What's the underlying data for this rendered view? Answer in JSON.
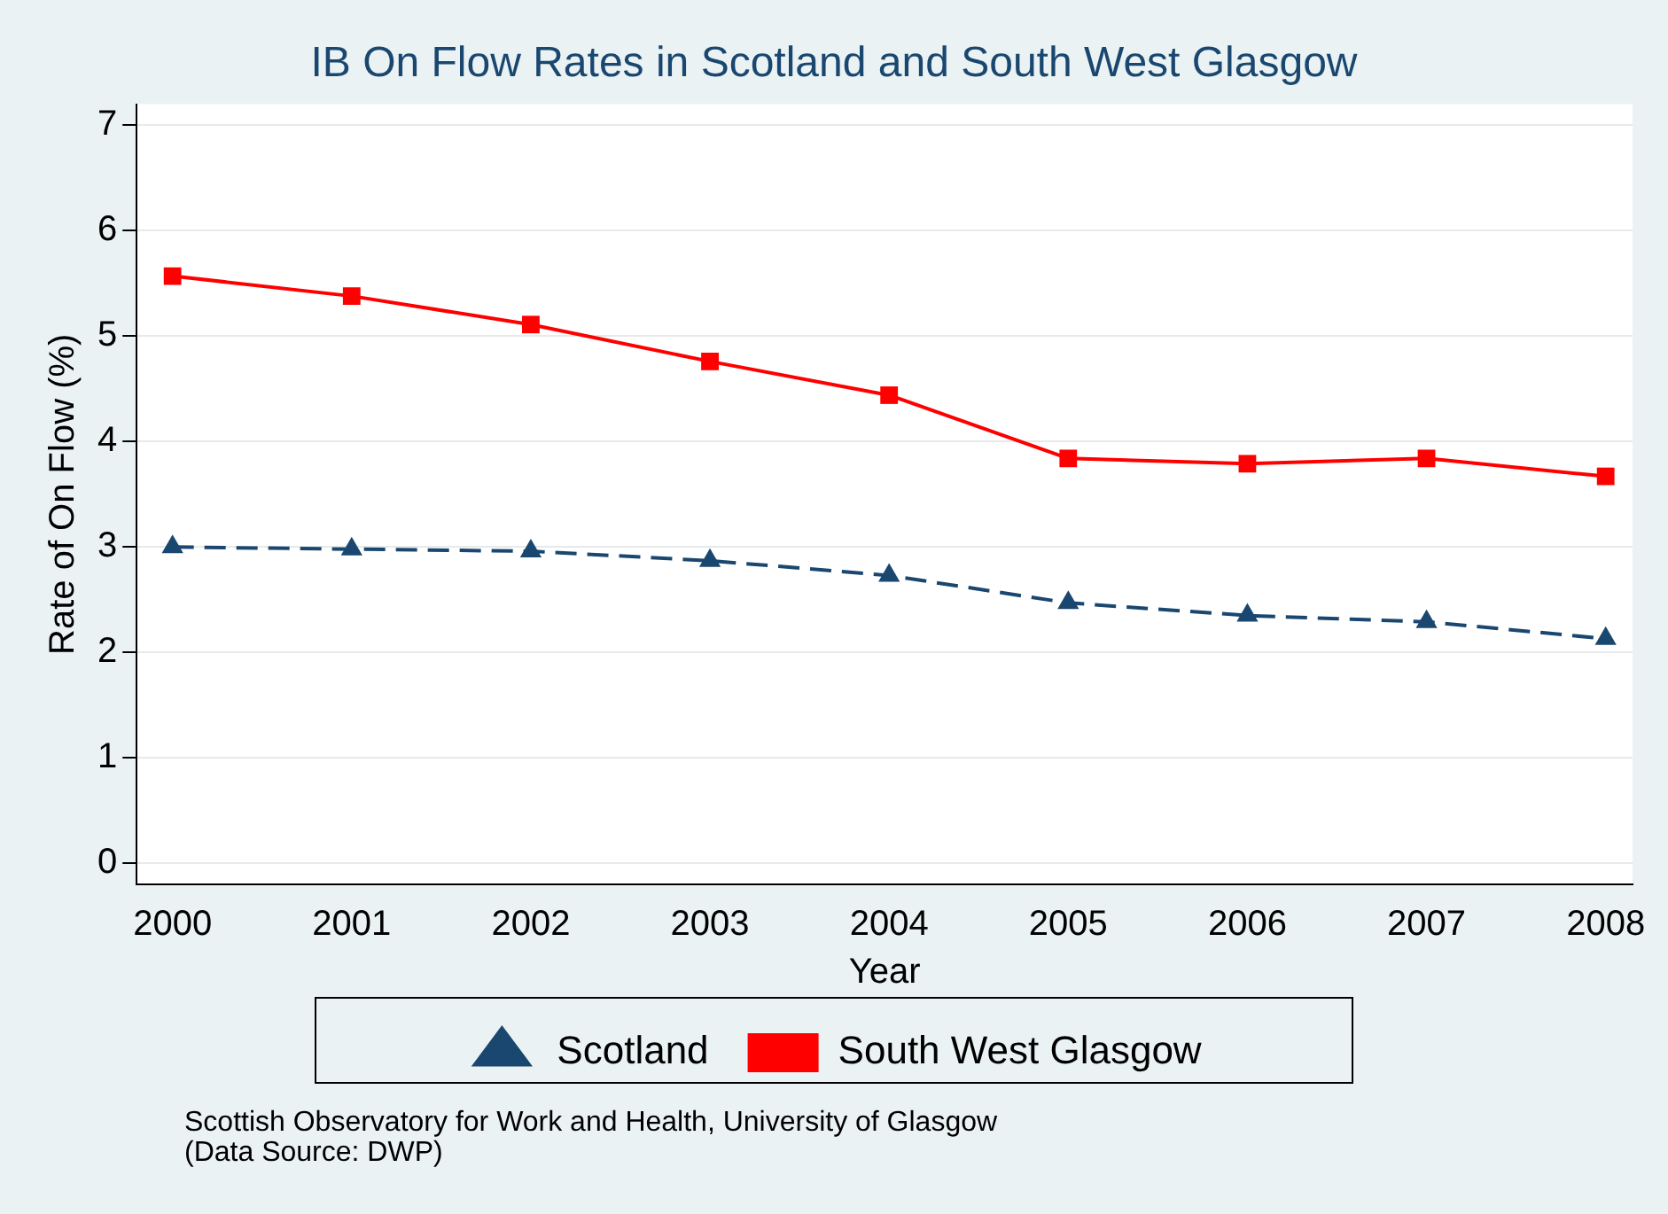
{
  "chart_data": {
    "type": "line",
    "title": "IB On Flow Rates in Scotland and South West Glasgow",
    "xlabel": "Year",
    "ylabel": "Rate of On Flow (%)",
    "x": [
      2000,
      2001,
      2002,
      2003,
      2004,
      2005,
      2006,
      2007,
      2008
    ],
    "series": [
      {
        "name": "Scotland",
        "color": "#1a476f",
        "marker": "triangle",
        "line_style": "dashed",
        "values": [
          3.0,
          2.98,
          2.96,
          2.87,
          2.73,
          2.47,
          2.35,
          2.29,
          2.13
        ]
      },
      {
        "name": "South West Glasgow",
        "color": "#ff0000",
        "marker": "square",
        "line_style": "solid",
        "values": [
          5.57,
          5.38,
          5.11,
          4.76,
          4.44,
          3.84,
          3.79,
          3.84,
          3.67
        ]
      }
    ],
    "xlim": [
      1999.8,
      2008.15
    ],
    "xticks": [
      2000,
      2001,
      2002,
      2003,
      2004,
      2005,
      2006,
      2007,
      2008
    ],
    "ylim": [
      -0.2,
      7.2
    ],
    "yticks": [
      0,
      1,
      2,
      3,
      4,
      5,
      6,
      7
    ],
    "grid": "y",
    "legend": "bottom",
    "annotations": [
      "Scottish Observatory for Work and Health, University of Glasgow",
      "(Data Source: DWP)"
    ]
  }
}
